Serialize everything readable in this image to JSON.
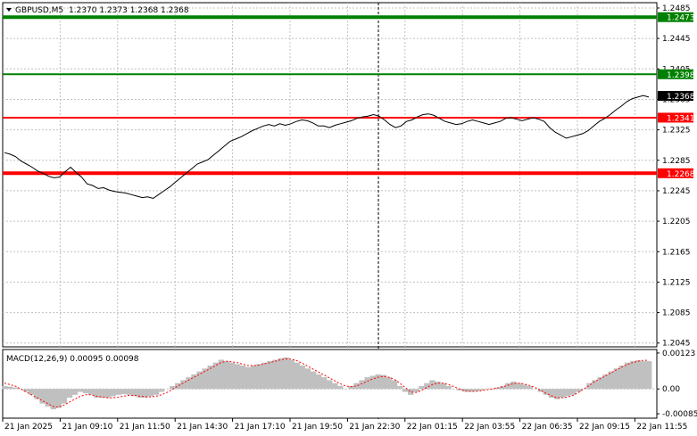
{
  "header": {
    "symbol": "GBPUSD,M5",
    "ohlc": "1.2370 1.2373 1.2368 1.2368"
  },
  "price_axis": {
    "ticks": [
      "1.2485",
      "1.2445",
      "1.2405",
      "1.2365",
      "1.2325",
      "1.2285",
      "1.2245",
      "1.2205",
      "1.2165",
      "1.2125",
      "1.2085",
      "1.2045"
    ],
    "current_price": "1.2368"
  },
  "levels": [
    {
      "label": "1.2473",
      "price": 1.2473,
      "color": "#008000",
      "thick": true
    },
    {
      "label": "1.2398",
      "price": 1.2398,
      "color": "#008000",
      "thick": false
    },
    {
      "label": "1.2341",
      "price": 1.2341,
      "color": "#ff0000",
      "thick": false
    },
    {
      "label": "1.2268",
      "price": 1.2268,
      "color": "#ff0000",
      "thick": true
    }
  ],
  "macd": {
    "label": "MACD(12,26,9) 0.00095 0.00098",
    "ticks": [
      "0.00123",
      "0.00",
      "-0.00085"
    ]
  },
  "time_axis": {
    "ticks": [
      "21 Jan 2025",
      "21 Jan 09:10",
      "21 Jan 11:50",
      "21 Jan 14:30",
      "21 Jan 17:10",
      "21 Jan 19:50",
      "21 Jan 22:30",
      "22 Jan 01:15",
      "22 Jan 03:55",
      "22 Jan 06:35",
      "22 Jan 09:15",
      "22 Jan 11:55"
    ]
  },
  "chart_data": {
    "type": "line",
    "series": [
      {
        "values": [
          1.2295,
          1.2293,
          1.229,
          1.2284,
          1.228,
          1.2276,
          1.2271,
          1.2268,
          1.2264,
          1.2262,
          1.2263,
          1.227,
          1.2276,
          1.2269,
          1.2263,
          1.2254,
          1.2252,
          1.2248,
          1.2249,
          1.2246,
          1.2244,
          1.2243,
          1.2242,
          1.224,
          1.2238,
          1.2236,
          1.2237,
          1.2235,
          1.224,
          1.2245,
          1.225,
          1.2256,
          1.2262,
          1.2268,
          1.2274,
          1.228,
          1.2283,
          1.2286,
          1.2292,
          1.2298,
          1.2304,
          1.231,
          1.2313,
          1.2316,
          1.232,
          1.2324,
          1.2327,
          1.233,
          1.2332,
          1.233,
          1.2333,
          1.2331,
          1.2333,
          1.2336,
          1.2338,
          1.2337,
          1.2334,
          1.233,
          1.233,
          1.2328,
          1.2331,
          1.2333,
          1.2335,
          1.2337,
          1.234,
          1.2342,
          1.2343,
          1.2345,
          1.2343,
          1.2338,
          1.2332,
          1.2328,
          1.233,
          1.2336,
          1.2338,
          1.2342,
          1.2345,
          1.2346,
          1.2344,
          1.234,
          1.2336,
          1.2334,
          1.2332,
          1.2333,
          1.2336,
          1.2338,
          1.2336,
          1.2334,
          1.2332,
          1.2334,
          1.2336,
          1.234,
          1.2341,
          1.2339,
          1.2337,
          1.2339,
          1.2341,
          1.2339,
          1.2336,
          1.2328,
          1.2322,
          1.2318,
          1.2314,
          1.2316,
          1.2318,
          1.232,
          1.2324,
          1.233,
          1.2336,
          1.234,
          1.2345,
          1.2351,
          1.2356,
          1.2362,
          1.2366,
          1.2368,
          1.237,
          1.2368
        ]
      }
    ],
    "ylim": [
      1.204,
      1.2492
    ]
  },
  "macd_data": {
    "histogram": [
      0.0001,
      8e-05,
      5e-05,
      0.0,
      -0.0001,
      -0.0002,
      -0.00035,
      -0.0005,
      -0.0006,
      -0.0007,
      -0.00065,
      -0.0005,
      -0.0003,
      -0.0002,
      -0.0001,
      -0.00015,
      -0.0002,
      -0.0003,
      -0.0003,
      -0.0003,
      -0.00025,
      -0.0002,
      -0.00018,
      -0.0002,
      -0.00025,
      -0.0003,
      -0.0003,
      -0.00025,
      -0.0002,
      -0.0001,
      0.0,
      0.0001,
      0.0002,
      0.0003,
      0.0004,
      0.0005,
      0.0006,
      0.0007,
      0.0008,
      0.0009,
      0.001,
      0.00095,
      0.0009,
      0.00085,
      0.0008,
      0.00075,
      0.0008,
      0.00085,
      0.0009,
      0.00095,
      0.001,
      0.00105,
      0.00108,
      0.001,
      0.0009,
      0.0008,
      0.0007,
      0.0006,
      0.0005,
      0.0004,
      0.0003,
      0.0002,
      0.0001,
      0.0,
      0.0001,
      0.0002,
      0.0003,
      0.0004,
      0.00045,
      0.0005,
      0.00048,
      0.0004,
      0.0003,
      0.0001,
      -0.0001,
      -0.0002,
      -0.0001,
      0.0001,
      0.0002,
      0.0003,
      0.00025,
      0.0002,
      0.0001,
      0.0,
      -5e-05,
      -0.0001,
      -0.0001,
      -8e-05,
      -5e-05,
      0.0,
      0.0,
      5e-05,
      0.0001,
      0.0002,
      0.00025,
      0.0002,
      0.00015,
      0.0001,
      0.0,
      -0.0001,
      -0.0002,
      -0.0003,
      -0.00035,
      -0.0003,
      -0.00025,
      -0.0002,
      -0.0001,
      0.0,
      0.0002,
      0.0003,
      0.0004,
      0.0005,
      0.0006,
      0.0007,
      0.0008,
      0.0009,
      0.00095,
      0.00098,
      0.00095,
      0.00095
    ],
    "signal": [
      0.0002,
      0.00015,
      0.0001,
      0.0,
      -0.0001,
      -0.0002,
      -0.0003,
      -0.0004,
      -0.0005,
      -0.0006,
      -0.00062,
      -0.00055,
      -0.00045,
      -0.00035,
      -0.00025,
      -0.0002,
      -0.0002,
      -0.00025,
      -0.00028,
      -0.0003,
      -0.0003,
      -0.00028,
      -0.00025,
      -0.00022,
      -0.00022,
      -0.00025,
      -0.00027,
      -0.00027,
      -0.00025,
      -0.0002,
      -0.00012,
      -2e-05,
      0.0001,
      0.0002,
      0.0003,
      0.0004,
      0.0005,
      0.0006,
      0.0007,
      0.0008,
      0.0009,
      0.00095,
      0.00093,
      0.0009,
      0.00085,
      0.0008,
      0.0008,
      0.00082,
      0.00086,
      0.0009,
      0.00095,
      0.001,
      0.00103,
      0.00102,
      0.00097,
      0.00088,
      0.00078,
      0.00068,
      0.00058,
      0.00048,
      0.00038,
      0.00028,
      0.00018,
      0.0001,
      8e-05,
      0.0001,
      0.00018,
      0.00026,
      0.00034,
      0.0004,
      0.00043,
      0.0004,
      0.00033,
      0.0002,
      5e-05,
      -0.0001,
      -0.00012,
      -5e-05,
      5e-05,
      0.00015,
      0.0002,
      0.0002,
      0.00015,
      8e-05,
      0.0,
      -5e-05,
      -8e-05,
      -8e-05,
      -6e-05,
      -3e-05,
      0.0,
      3e-05,
      7e-05,
      0.00013,
      0.00018,
      0.0002,
      0.00017,
      0.00012,
      5e-05,
      -5e-05,
      -0.00015,
      -0.00023,
      -0.0003,
      -0.0003,
      -0.00028,
      -0.00022,
      -0.00012,
      0.0,
      0.00012,
      0.00025,
      0.00035,
      0.00045,
      0.00055,
      0.00065,
      0.00075,
      0.00083,
      0.0009,
      0.00095,
      0.00098,
      0.00098
    ],
    "ylim": [
      -0.001,
      0.00135
    ]
  }
}
